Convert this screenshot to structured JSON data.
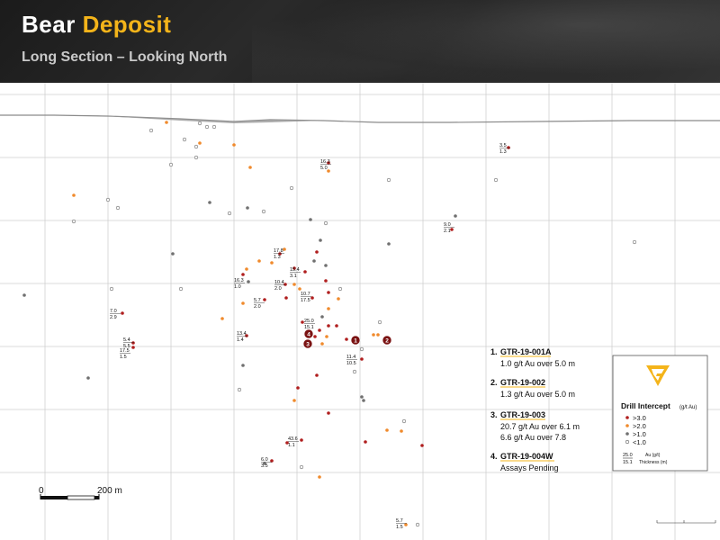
{
  "header": {
    "title_part1": "Bear",
    "title_part2": "Deposit",
    "subtitle": "Long Section – Looking North"
  },
  "scale_bar": {
    "start_label": "0",
    "end_label": "200 m"
  },
  "holes": [
    {
      "num": "1.",
      "name": "GTR-19-001A",
      "lines": [
        "1.0 g/t Au over 5.0 m"
      ]
    },
    {
      "num": "2.",
      "name": "GTR-19-002",
      "lines": [
        "1.3 g/t Au over 5.0 m"
      ]
    },
    {
      "num": "3.",
      "name": "GTR-19-003",
      "lines": [
        "20.7 g/t Au over 6.1 m",
        "6.6 g/t Au over 7.8"
      ]
    },
    {
      "num": "4.",
      "name": "GTR-19-004W",
      "lines": [
        "Assays Pending"
      ]
    }
  ],
  "legend": {
    "title": "Drill Intercept",
    "unit": "(g/t Au)",
    "items": [
      {
        "label": ">3.0",
        "color": "#b01e1e"
      },
      {
        "label": ">2.0",
        "color": "#f08a2c"
      },
      {
        "label": ">1.0",
        "color": "#707070"
      },
      {
        "label": "<1.0",
        "color": "#ffffff"
      }
    ],
    "key_top": "25.0",
    "key_bottom": "15.1",
    "key_top_desc": "Au (g/t)",
    "key_bottom_desc": "Thickness (m)"
  },
  "colors": {
    "gold": "#f4b41a",
    "high": "#b01e1e",
    "mid": "#f08a2c",
    "low": "#707070"
  },
  "labels": [
    {
      "top": "16.3",
      "bottom": "5.0"
    },
    {
      "top": "3.5",
      "bottom": "1.3"
    },
    {
      "top": "9.0",
      "bottom": "2.1"
    },
    {
      "top": "17.8",
      "bottom": "1.3"
    },
    {
      "top": "15.4",
      "bottom": "3.1"
    },
    {
      "top": "16.3",
      "bottom": "1.0"
    },
    {
      "top": "10.4",
      "bottom": "2.0"
    },
    {
      "top": "5.7",
      "bottom": "2.0"
    },
    {
      "top": "10.7",
      "bottom": "17.5"
    },
    {
      "top": "7.0",
      "bottom": "2.9"
    },
    {
      "top": "25.0",
      "bottom": "15.1"
    },
    {
      "top": "13.4",
      "bottom": "1.4"
    },
    {
      "top": "5.4",
      "bottom": "5.5"
    },
    {
      "top": "17.5",
      "bottom": "1.5"
    },
    {
      "top": "11.4",
      "bottom": "10.5"
    },
    {
      "top": "43.6",
      "bottom": "1.1"
    },
    {
      "top": "6.0",
      "bottom": "3.5"
    },
    {
      "top": "5.7",
      "bottom": "1.5"
    }
  ],
  "collars": [
    "1",
    "2",
    "3",
    "4"
  ]
}
